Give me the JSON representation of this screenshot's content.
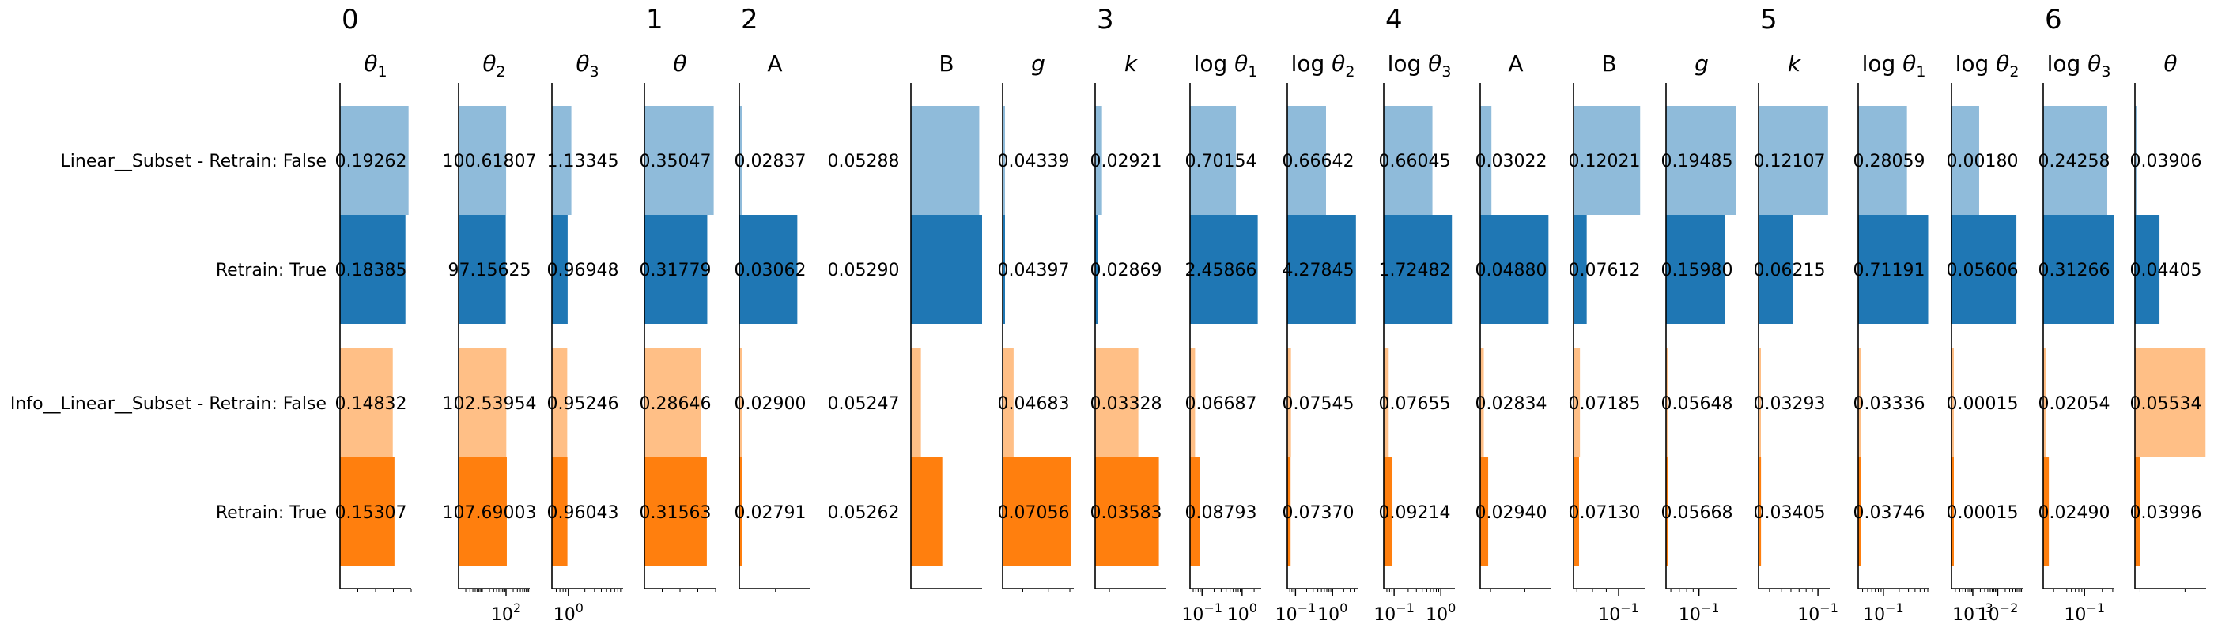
{
  "chart_data": {
    "type": "bar",
    "orientation": "horizontal",
    "groups": [
      {
        "label": "0",
        "first_col": 0
      },
      {
        "label": "1",
        "first_col": 3
      },
      {
        "label": "2",
        "first_col": 4
      },
      {
        "label": "3",
        "first_col": 8
      },
      {
        "label": "4",
        "first_col": 11
      },
      {
        "label": "5",
        "first_col": 15
      },
      {
        "label": "6",
        "first_col": 18
      }
    ],
    "rows": [
      {
        "label": "Linear__Subset - Retrain: False",
        "color": "#8fbbda"
      },
      {
        "label": "Retrain: True",
        "color": "#1f77b4"
      },
      {
        "label": "Info__Linear__Subset - Retrain: False",
        "color": "#ffbf86"
      },
      {
        "label": "Retrain: True",
        "color": "#ff7f0e"
      }
    ],
    "columns": [
      {
        "title": "θ",
        "sub": "1",
        "log": false,
        "xlim": [
          0,
          0.2
        ],
        "ticks": [],
        "values": [
          0.19262,
          0.18385,
          0.14832,
          0.15307
        ],
        "labels": [
          "0.19262",
          "0.18385",
          "0.14832",
          "0.15307"
        ]
      },
      {
        "title": "θ",
        "sub": "2",
        "log": true,
        "xlim": [
          1,
          1000
        ],
        "ticks": [
          {
            "base": "10",
            "exp": "2",
            "value": 100
          }
        ],
        "values": [
          100.61807,
          97.15625,
          102.53954,
          107.69003
        ],
        "labels": [
          "100.61807",
          "97.15625",
          "102.53954",
          "107.69003"
        ]
      },
      {
        "title": "θ",
        "sub": "3",
        "log": true,
        "xlim": [
          0.5,
          10
        ],
        "ticks": [
          {
            "base": "10",
            "exp": "0",
            "value": 1
          }
        ],
        "values": [
          1.13345,
          0.96948,
          0.95246,
          0.96043
        ],
        "labels": [
          "1.13345",
          "0.96948",
          "0.95246",
          "0.96043"
        ]
      },
      {
        "title": "θ",
        "sub": "",
        "log": false,
        "xlim": [
          0,
          0.36
        ],
        "ticks": [],
        "values": [
          0.35047,
          0.31779,
          0.28646,
          0.31563
        ],
        "labels": [
          "0.35047",
          "0.31779",
          "0.28646",
          "0.31563"
        ]
      },
      {
        "title": "A",
        "sub": "",
        "log": true,
        "xlim": [
          0.029,
          0.031
        ],
        "ticks": [],
        "values": [
          0.02837,
          0.03062,
          0.029,
          0.02791
        ],
        "labels": [
          "0.02837",
          "0.03062",
          "0.02900",
          "0.02791"
        ]
      },
      {
        "title": "",
        "sub": "",
        "log": false,
        "xlim": [
          0,
          1
        ],
        "ticks": [],
        "noaxis": true,
        "values": [
          0.05288,
          0.0529,
          0.05247,
          0.05262
        ],
        "labels": [
          "0.05288",
          "0.05290",
          "0.05247",
          "0.05262"
        ]
      },
      {
        "title": "B",
        "sub": "",
        "log": true,
        "xlim": [
          0.0524,
          0.0529
        ],
        "ticks": [],
        "values": [
          0.05288,
          0.0529,
          0.05247,
          0.05262
        ],
        "labels": [
          "",
          "",
          "",
          ""
        ]
      },
      {
        "title": "g",
        "sub": "",
        "log": true,
        "xlim": [
          0.0433,
          0.072
        ],
        "ticks": [],
        "values": [
          0.04339,
          0.04397,
          0.04683,
          0.07056
        ],
        "labels": [
          "0.04339",
          "0.04397",
          "0.04683",
          "0.07056"
        ]
      },
      {
        "title": "k",
        "sub": "",
        "log": true,
        "xlim": [
          0.0285,
          0.0368
        ],
        "ticks": [],
        "values": [
          0.02921,
          0.02869,
          0.03328,
          0.03583
        ],
        "labels": [
          "0.02921",
          "0.02869",
          "0.03328",
          "0.03583"
        ]
      },
      {
        "title": "log θ",
        "sub": "1",
        "log": true,
        "xlim": [
          0.05,
          3
        ],
        "ticks": [
          {
            "base": "10",
            "exp": "−1",
            "value": 0.1
          },
          {
            "base": "10",
            "exp": "0",
            "value": 1
          }
        ],
        "values": [
          0.70154,
          2.45866,
          0.06687,
          0.08793
        ],
        "labels": [
          "0.70154",
          "2.45866",
          "0.06687",
          "0.08793"
        ]
      },
      {
        "title": "log θ",
        "sub": "2",
        "log": true,
        "xlim": [
          0.06,
          5
        ],
        "ticks": [
          {
            "base": "10",
            "exp": "−1",
            "value": 0.1
          },
          {
            "base": "10",
            "exp": "0",
            "value": 1
          }
        ],
        "values": [
          0.66642,
          4.27845,
          0.07545,
          0.0737
        ],
        "labels": [
          "0.66642",
          "4.27845",
          "0.07545",
          "0.07370"
        ]
      },
      {
        "title": "log θ",
        "sub": "3",
        "log": true,
        "xlim": [
          0.06,
          2
        ],
        "ticks": [
          {
            "base": "10",
            "exp": "−1",
            "value": 0.1
          },
          {
            "base": "10",
            "exp": "0",
            "value": 1
          }
        ],
        "values": [
          0.66045,
          1.72482,
          0.07655,
          0.09214
        ],
        "labels": [
          "0.66045",
          "1.72482",
          "0.07655",
          "0.09214"
        ]
      },
      {
        "title": "A",
        "sub": "",
        "log": true,
        "xlim": [
          0.0275,
          0.05
        ],
        "ticks": [],
        "values": [
          0.03022,
          0.0488,
          0.02834,
          0.0294
        ],
        "labels": [
          "0.03022",
          "0.04880",
          "0.02834",
          "0.02940"
        ]
      },
      {
        "title": "B",
        "sub": "",
        "log": true,
        "xlim": [
          0.068,
          0.125
        ],
        "ticks": [
          {
            "base": "10",
            "exp": "−1",
            "value": 0.1
          }
        ],
        "values": [
          0.12021,
          0.07612,
          0.07185,
          0.0713
        ],
        "labels": [
          "0.12021",
          "0.07612",
          "0.07185",
          "0.07130"
        ]
      },
      {
        "title": "g",
        "sub": "",
        "log": true,
        "xlim": [
          0.055,
          0.2
        ],
        "ticks": [
          {
            "base": "10",
            "exp": "−1",
            "value": 0.1
          }
        ],
        "values": [
          0.19485,
          0.1598,
          0.05648,
          0.05668
        ],
        "labels": [
          "0.19485",
          "0.15980",
          "0.05648",
          "0.05668"
        ]
      },
      {
        "title": "k",
        "sub": "",
        "log": true,
        "xlim": [
          0.0325,
          0.125
        ],
        "ticks": [
          {
            "base": "10",
            "exp": "−1",
            "value": 0.1
          }
        ],
        "values": [
          0.12107,
          0.06215,
          0.03293,
          0.03405
        ],
        "labels": [
          "0.12107",
          "0.06215",
          "0.03293",
          "0.03405"
        ]
      },
      {
        "title": "log θ",
        "sub": "1",
        "log": true,
        "xlim": [
          0.033,
          0.75
        ],
        "ticks": [
          {
            "base": "10",
            "exp": "−1",
            "value": 0.1
          }
        ],
        "values": [
          0.28059,
          0.71191,
          0.03336,
          0.03746
        ],
        "labels": [
          "0.28059",
          "0.71191",
          "0.03336",
          "0.03746"
        ]
      },
      {
        "title": "log θ",
        "sub": "2",
        "log": true,
        "xlim": [
          0.00014,
          0.1
        ],
        "ticks": [
          {
            "base": "10",
            "exp": "−3",
            "value": 0.001
          },
          {
            "base": "10",
            "exp": "−2",
            "value": 0.01
          }
        ],
        "values": [
          0.0018,
          0.05606,
          0.00015,
          0.00015
        ],
        "labels": [
          "0.00180",
          "0.05606",
          "0.00015",
          "0.00015"
        ]
      },
      {
        "title": "log θ",
        "sub": "3",
        "log": true,
        "xlim": [
          0.02,
          0.32
        ],
        "ticks": [
          {
            "base": "10",
            "exp": "−1",
            "value": 0.1
          }
        ],
        "values": [
          0.24258,
          0.31266,
          0.02054,
          0.0249
        ],
        "labels": [
          "0.24258",
          "0.31266",
          "0.02054",
          "0.02490"
        ]
      },
      {
        "title": "θ",
        "sub": "",
        "log": true,
        "xlim": [
          0.039,
          0.0555
        ],
        "ticks": [],
        "values": [
          0.03906,
          0.04405,
          0.05534,
          0.03996
        ],
        "labels": [
          "0.03906",
          "0.04405",
          "0.05534",
          "0.03996"
        ]
      }
    ]
  }
}
